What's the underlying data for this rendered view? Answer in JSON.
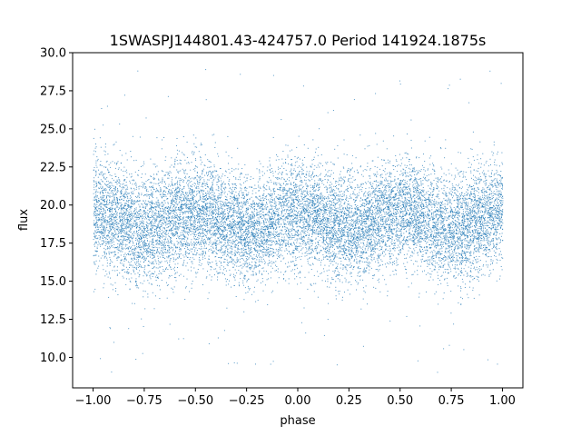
{
  "chart_data": {
    "type": "scatter",
    "title": "1SWASPJ144801.43-424757.0 Period 141924.1875s",
    "xlabel": "phase",
    "ylabel": "flux",
    "xlim": [
      -1.1,
      1.1
    ],
    "ylim": [
      8.0,
      30.0
    ],
    "xticks": [
      -1.0,
      -0.75,
      -0.5,
      -0.25,
      0.0,
      0.25,
      0.5,
      0.75,
      1.0
    ],
    "xtick_labels": [
      "−1.00",
      "−0.75",
      "−0.50",
      "−0.25",
      "0.00",
      "0.25",
      "0.50",
      "0.75",
      "1.00"
    ],
    "yticks": [
      10.0,
      12.5,
      15.0,
      17.5,
      20.0,
      22.5,
      25.0,
      27.5,
      30.0
    ],
    "ytick_labels": [
      "10.0",
      "12.5",
      "15.0",
      "17.5",
      "20.0",
      "22.5",
      "25.0",
      "27.5",
      "30.0"
    ],
    "grid": false,
    "legend": "none",
    "marker_color": "#1f77b4",
    "series": [
      {
        "x_range": [
          -1.0,
          1.0
        ],
        "y_center_approx": 19.0,
        "y_core_range": [
          15.5,
          22.5
        ],
        "y_outlier_range": [
          9.0,
          29.0
        ],
        "sample_points": [
          {
            "x": -1.0,
            "y": 18.5
          },
          {
            "x": -0.9,
            "y": 19.0
          },
          {
            "x": -0.75,
            "y": 19.8
          },
          {
            "x": -0.6,
            "y": 19.5
          },
          {
            "x": -0.5,
            "y": 18.6
          },
          {
            "x": -0.4,
            "y": 18.0
          },
          {
            "x": -0.25,
            "y": 19.2
          },
          {
            "x": -0.1,
            "y": 19.6
          },
          {
            "x": 0.0,
            "y": 18.8
          },
          {
            "x": 0.1,
            "y": 18.2
          },
          {
            "x": 0.25,
            "y": 19.4
          },
          {
            "x": 0.4,
            "y": 19.5
          },
          {
            "x": 0.5,
            "y": 18.6
          },
          {
            "x": 0.6,
            "y": 18.0
          },
          {
            "x": 0.75,
            "y": 19.2
          },
          {
            "x": 0.9,
            "y": 19.6
          },
          {
            "x": 1.0,
            "y": 18.8
          }
        ]
      }
    ]
  }
}
